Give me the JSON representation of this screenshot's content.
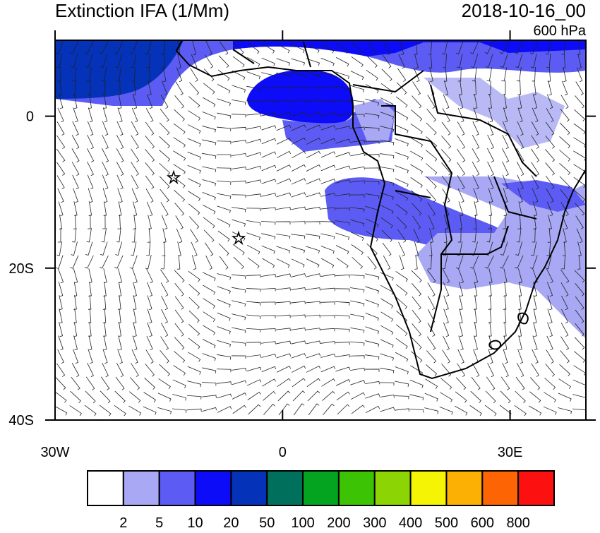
{
  "header": {
    "title": "Extinction IFA (1/Mm)",
    "time": "2018-10-16_00",
    "level": "600 hPa"
  },
  "map": {
    "xlim": [
      -30,
      40
    ],
    "ylim": [
      -40,
      10
    ],
    "xticks": [
      {
        "value": -30,
        "label": "30W"
      },
      0,
      {
        "value": 30,
        "label": "30E"
      }
    ],
    "yticks": [
      0,
      {
        "value": -20,
        "label": "20S"
      },
      {
        "value": -40,
        "label": "40S"
      }
    ]
  },
  "colorbar": {
    "levels": [
      2,
      5,
      10,
      20,
      50,
      100,
      200,
      300,
      400,
      500,
      600,
      800
    ],
    "colors": [
      "#ffffff",
      "#a8a8f4",
      "#5c5cf4",
      "#0c0cf8",
      "#0432b8",
      "#00705c",
      "#04a420",
      "#3cc404",
      "#8cd404",
      "#f4f404",
      "#fcb004",
      "#fc6404",
      "#fc1010"
    ]
  }
}
